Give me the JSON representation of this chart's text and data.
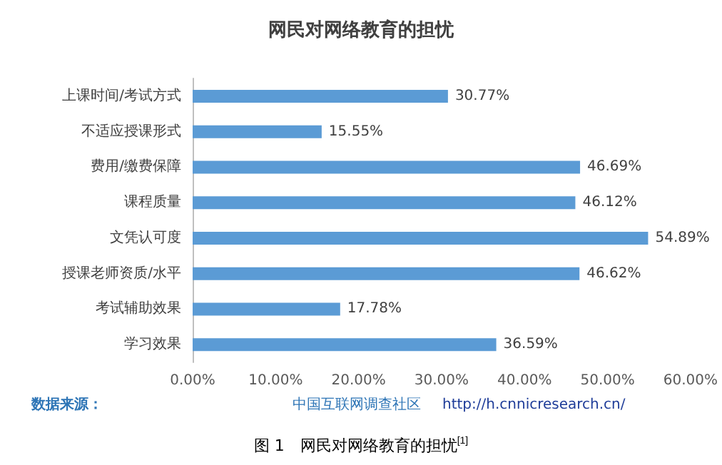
{
  "chart_data": {
    "type": "bar",
    "orientation": "horizontal",
    "title": "网民对网络教育的担忧",
    "categories": [
      "上课时间/考试方式",
      "不适应授课形式",
      "费用/缴费保障",
      "课程质量",
      "文凭认可度",
      "授课老师资质/水平",
      "考试辅助效果",
      "学习效果"
    ],
    "values": [
      30.77,
      15.55,
      46.69,
      46.12,
      54.89,
      46.62,
      17.78,
      36.59
    ],
    "value_labels": [
      "30.77%",
      "15.55%",
      "46.69%",
      "46.12%",
      "54.89%",
      "46.62%",
      "17.78%",
      "36.59%"
    ],
    "color": "#5b9bd5",
    "xlim": [
      0,
      60
    ],
    "xticks": [
      {
        "value": 0,
        "label": "0.00%"
      },
      {
        "value": 10,
        "label": "10.00%"
      },
      {
        "value": 20,
        "label": "20.00%"
      },
      {
        "value": 30,
        "label": "30.00%"
      },
      {
        "value": 40,
        "label": "40.00%"
      },
      {
        "value": 50,
        "label": "50.00%"
      },
      {
        "value": 60,
        "label": "60.00%"
      }
    ],
    "grid": false,
    "annotations": [
      "数据来源：",
      "中国互联网调查社区",
      "http://h.cnnicresearch.cn/",
      "图 1　网民对网络教育的担忧$^{[1]}$"
    ]
  }
}
